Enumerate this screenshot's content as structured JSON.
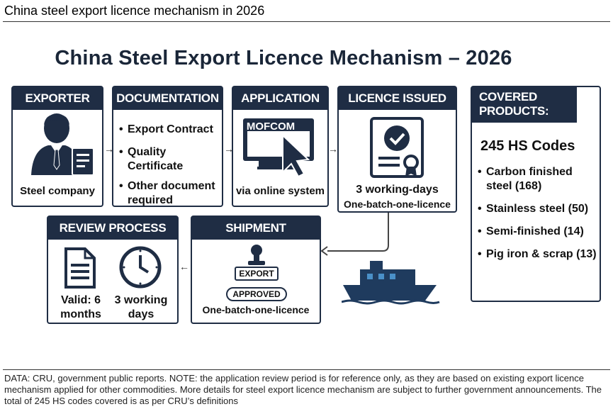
{
  "page_header": "China steel export licence mechanism in 2026",
  "title": "China Steel Export Licence Mechanism – 2026",
  "exporter": {
    "heading": "EXPORTER",
    "label": "Steel company"
  },
  "documentation": {
    "heading": "DOCUMENTATION",
    "items": [
      "Export Contract",
      "Quality Certificate",
      "Other document required"
    ]
  },
  "application": {
    "heading": "APPLICATION",
    "screen_text": "MOFCOM",
    "label": "via online system"
  },
  "licence_issued": {
    "heading": "LICENCE ISSUED",
    "line1": "3 working-days",
    "line2": "One-batch-one-licence"
  },
  "covered_products": {
    "heading": "COVERED PRODUCTS:",
    "total": "245 HS Codes",
    "items": [
      "Carbon finished steel (168)",
      "Stainless steel (50)",
      "Semi-finished (14)",
      "Pig iron & scrap (13)"
    ]
  },
  "review_process": {
    "heading": "REVIEW PROCESS",
    "valid_label": "Valid: 6 months",
    "days_label": "3 working days"
  },
  "shipment": {
    "heading": "SHIPMENT",
    "stamp_export": "EXPORT",
    "stamp_approved": "APPROVED",
    "label": "One-batch-one-licence"
  },
  "footnote": "DATA: CRU, government public reports. NOTE: the application review period is for reference only, as they are based on existing export licence mechanism applied for other commodities. More details for steel export licence mechanism are subject to further government announcements. The total of 245 HS codes covered is as per CRU’s definitions",
  "colors": {
    "navy": "#1f2d44",
    "ship": "#1f3b5e",
    "accent_light": "#4a90c8"
  }
}
